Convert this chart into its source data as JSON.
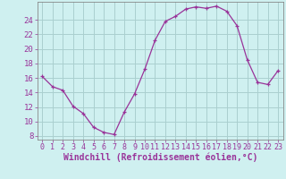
{
  "xlabel": "Windchill (Refroidissement éolien,°C)",
  "bg_color": "#cff0f0",
  "grid_color": "#aacfcf",
  "line_color": "#993399",
  "marker_color": "#993399",
  "hours": [
    0,
    1,
    2,
    3,
    4,
    5,
    6,
    7,
    8,
    9,
    10,
    11,
    12,
    13,
    14,
    15,
    16,
    17,
    18,
    19,
    20,
    21,
    22,
    23
  ],
  "values": [
    16.2,
    14.8,
    14.3,
    12.1,
    11.1,
    9.2,
    8.5,
    8.2,
    11.3,
    13.8,
    17.2,
    21.2,
    23.8,
    24.5,
    25.5,
    25.8,
    25.6,
    25.9,
    25.2,
    23.2,
    18.5,
    15.4,
    15.1,
    17.0
  ],
  "ylim": [
    7.5,
    26.5
  ],
  "yticks": [
    8,
    10,
    12,
    14,
    16,
    18,
    20,
    22,
    24
  ],
  "xlim": [
    -0.5,
    23.5
  ],
  "xticks": [
    0,
    1,
    2,
    3,
    4,
    5,
    6,
    7,
    8,
    9,
    10,
    11,
    12,
    13,
    14,
    15,
    16,
    17,
    18,
    19,
    20,
    21,
    22,
    23
  ],
  "xlabel_fontsize": 7.0,
  "ytick_fontsize": 6.5,
  "xtick_fontsize": 6.0
}
